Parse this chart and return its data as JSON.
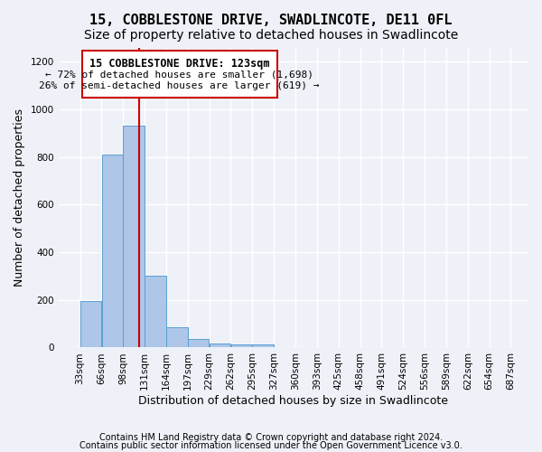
{
  "title": "15, COBBLESTONE DRIVE, SWADLINCOTE, DE11 0FL",
  "subtitle": "Size of property relative to detached houses in Swadlincote",
  "xlabel": "Distribution of detached houses by size in Swadlincote",
  "ylabel": "Number of detached properties",
  "footnote1": "Contains HM Land Registry data © Crown copyright and database right 2024.",
  "footnote2": "Contains public sector information licensed under the Open Government Licence v3.0.",
  "annotation_line1": "15 COBBLESTONE DRIVE: 123sqm",
  "annotation_line2": "← 72% of detached houses are smaller (1,698)",
  "annotation_line3": "26% of semi-detached houses are larger (619) →",
  "bar_color": "#aec6e8",
  "bar_edge_color": "#5a9fd4",
  "background_color": "#eef2f8",
  "grid_color": "#ffffff",
  "vline_x": 123,
  "vline_color": "#cc0000",
  "bins_left_edges": [
    33,
    66,
    99,
    132,
    165,
    198,
    231,
    264,
    297,
    330,
    363,
    396,
    429,
    462,
    495,
    528,
    561,
    594,
    627,
    660
  ],
  "bin_width": 33,
  "bin_labels": [
    "33sqm",
    "66sqm",
    "98sqm",
    "131sqm",
    "164sqm",
    "197sqm",
    "229sqm",
    "262sqm",
    "295sqm",
    "327sqm",
    "360sqm",
    "393sqm",
    "425sqm",
    "458sqm",
    "491sqm",
    "524sqm",
    "556sqm",
    "589sqm",
    "622sqm",
    "654sqm",
    "687sqm"
  ],
  "counts": [
    195,
    810,
    930,
    300,
    85,
    35,
    18,
    15,
    12,
    0,
    0,
    0,
    0,
    0,
    0,
    0,
    0,
    0,
    0,
    0
  ],
  "ylim": [
    0,
    1260
  ],
  "xlim_min": 0,
  "xlim_max": 720,
  "yticks": [
    0,
    200,
    400,
    600,
    800,
    1000,
    1200
  ],
  "title_fontsize": 11,
  "subtitle_fontsize": 10,
  "axis_fontsize": 9,
  "tick_fontsize": 7.5,
  "annotation_fontsize": 8.5,
  "footnote_fontsize": 7
}
